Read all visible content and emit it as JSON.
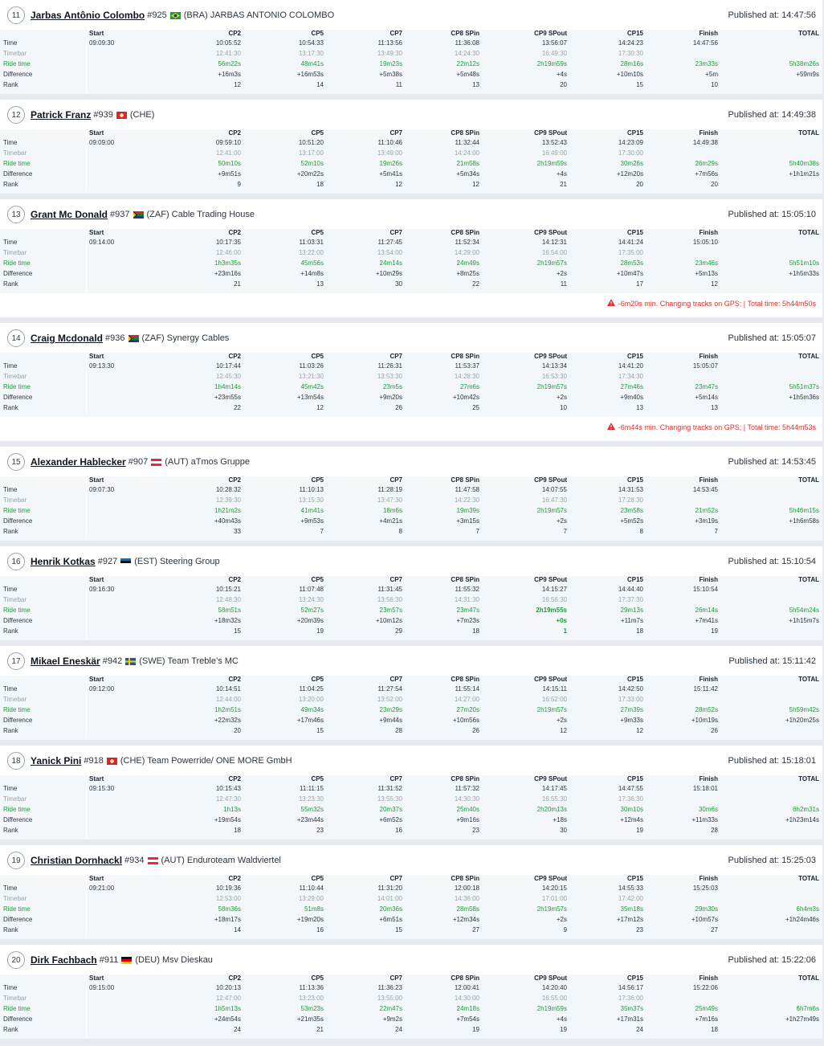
{
  "columns": [
    "Start",
    "CP2",
    "CP5",
    "CP7",
    "CP8 SPin",
    "CP9 SPout",
    "CP15",
    "Finish",
    "TOTAL"
  ],
  "row_labels": [
    "Time",
    "Timebar",
    "Ride time",
    "Difference",
    "Rank"
  ],
  "published_label": "Published at:",
  "riders": [
    {
      "rank": "11",
      "name": "Jarbas Antônio Colombo",
      "bib": "#925",
      "flag": "BRA",
      "country_team": "(BRA) JARBAS ANTONIO COLOMBO",
      "published": "14:47:56",
      "start": "09:09:30",
      "time": [
        "10:05:52",
        "10:54:33",
        "11:13:56",
        "11:36:08",
        "13:56:07",
        "14:24:23",
        "14:47:56",
        ""
      ],
      "timebar": [
        "12:41:30",
        "13:17:30",
        "13:49:30",
        "14:24:30",
        "16:49:30",
        "17:30:30",
        "",
        ""
      ],
      "ride": [
        "56m22s",
        "48m41s",
        "19m23s",
        "22m12s",
        "2h19m59s",
        "28m16s",
        "23m33s",
        "5h38m26s"
      ],
      "diff": [
        "+16m3s",
        "+16m53s",
        "+5m38s",
        "+5m48s",
        "+4s",
        "+10m10s",
        "+5m",
        "+59m9s"
      ],
      "rank_row": [
        "12",
        "14",
        "11",
        "13",
        "20",
        "15",
        "10",
        ""
      ],
      "warning": ""
    },
    {
      "rank": "12",
      "name": "Patrick Franz",
      "bib": "#939",
      "flag": "CHE",
      "country_team": "(CHE)",
      "published": "14:49:38",
      "start": "09:09:00",
      "time": [
        "09:59:10",
        "10:51:20",
        "11:10:46",
        "11:32:44",
        "13:52:43",
        "14:23:09",
        "14:49:38",
        ""
      ],
      "timebar": [
        "12:41:00",
        "13:17:00",
        "13:49:00",
        "14:24:00",
        "16:49:00",
        "17:30:00",
        "",
        ""
      ],
      "ride": [
        "50m10s",
        "52m10s",
        "19m26s",
        "21m58s",
        "2h19m59s",
        "30m26s",
        "26m29s",
        "5h40m38s"
      ],
      "diff": [
        "+9m51s",
        "+20m22s",
        "+5m41s",
        "+5m34s",
        "+4s",
        "+12m20s",
        "+7m56s",
        "+1h1m21s"
      ],
      "rank_row": [
        "9",
        "18",
        "12",
        "12",
        "21",
        "20",
        "20",
        ""
      ],
      "warning": ""
    },
    {
      "rank": "13",
      "name": "Grant Mc Donald",
      "bib": "#937",
      "flag": "ZAF",
      "country_team": "(ZAF) Cable Trading House",
      "published": "15:05:10",
      "start": "09:14:00",
      "time": [
        "10:17:35",
        "11:03:31",
        "11:27:45",
        "11:52:34",
        "14:12:31",
        "14:41:24",
        "15:05:10",
        ""
      ],
      "timebar": [
        "12:46:00",
        "13:22:00",
        "13:54:00",
        "14:29:00",
        "16:54:00",
        "17:35:00",
        "",
        ""
      ],
      "ride": [
        "1h3m35s",
        "45m56s",
        "24m14s",
        "24m49s",
        "2h19m57s",
        "28m53s",
        "23m46s",
        "5h51m10s"
      ],
      "diff": [
        "+23m16s",
        "+14m8s",
        "+10m29s",
        "+8m25s",
        "+2s",
        "+10m47s",
        "+5m13s",
        "+1h5m33s"
      ],
      "rank_row": [
        "21",
        "13",
        "30",
        "22",
        "11",
        "17",
        "12",
        ""
      ],
      "warning": "-6m20s min. Changing tracks on GPS; | Total time: 5h44m50s"
    },
    {
      "rank": "14",
      "name": "Craig Mcdonald",
      "bib": "#936",
      "flag": "ZAF",
      "country_team": "(ZAF) Synergy Cables",
      "published": "15:05:07",
      "start": "09:13:30",
      "time": [
        "10:17:44",
        "11:03:26",
        "11:26:31",
        "11:53:37",
        "14:13:34",
        "14:41:20",
        "15:05:07",
        ""
      ],
      "timebar": [
        "12:45:30",
        "13:21:30",
        "13:53:30",
        "14:28:30",
        "16:53:30",
        "17:34:30",
        "",
        ""
      ],
      "ride": [
        "1h4m14s",
        "45m42s",
        "23m5s",
        "27m6s",
        "2h19m57s",
        "27m46s",
        "23m47s",
        "5h51m37s"
      ],
      "diff": [
        "+23m55s",
        "+13m54s",
        "+9m20s",
        "+10m42s",
        "+2s",
        "+9m40s",
        "+5m14s",
        "+1h5m36s"
      ],
      "rank_row": [
        "22",
        "12",
        "26",
        "25",
        "10",
        "13",
        "13",
        ""
      ],
      "warning": "-6m44s min. Changing tracks on GPS; | Total time: 5h44m53s"
    },
    {
      "rank": "15",
      "name": "Alexander Hablecker",
      "bib": "#907",
      "flag": "AUT",
      "country_team": "(AUT) aTmos Gruppe",
      "published": "14:53:45",
      "start": "09:07:30",
      "time": [
        "10:28:32",
        "11:10:13",
        "11:28:19",
        "11:47:58",
        "14:07:55",
        "14:31:53",
        "14:53:45",
        ""
      ],
      "timebar": [
        "12:39:30",
        "13:15:30",
        "13:47:30",
        "14:22:30",
        "16:47:30",
        "17:28:30",
        "",
        ""
      ],
      "ride": [
        "1h21m2s",
        "41m41s",
        "18m6s",
        "19m39s",
        "2h19m57s",
        "23m58s",
        "21m52s",
        "5h46m15s"
      ],
      "diff": [
        "+40m43s",
        "+9m53s",
        "+4m21s",
        "+3m15s",
        "+2s",
        "+5m52s",
        "+3m19s",
        "+1h6m58s"
      ],
      "rank_row": [
        "33",
        "7",
        "8",
        "7",
        "7",
        "8",
        "7",
        ""
      ],
      "warning": ""
    },
    {
      "rank": "16",
      "name": "Henrik Kotkas",
      "bib": "#927",
      "flag": "EST",
      "country_team": "(EST) Steering Group",
      "published": "15:10:54",
      "start": "09:16:30",
      "time": [
        "10:15:21",
        "11:07:48",
        "11:31:45",
        "11:55:32",
        "14:15:27",
        "14:44:40",
        "15:10:54",
        ""
      ],
      "timebar": [
        "12:48:30",
        "13:24:30",
        "13:56:30",
        "14:31:30",
        "16:56:30",
        "17:37:30",
        "",
        ""
      ],
      "ride": [
        "58m51s",
        "52m27s",
        "23m57s",
        "23m47s",
        "2h19m55s",
        "29m13s",
        "26m14s",
        "5h54m24s"
      ],
      "diff": [
        "+18m32s",
        "+20m39s",
        "+10m12s",
        "+7m23s",
        "+0s",
        "+11m7s",
        "+7m41s",
        "+1h15m7s"
      ],
      "rank_row": [
        "15",
        "19",
        "29",
        "18",
        "1",
        "18",
        "19",
        ""
      ],
      "best_col": 4,
      "warning": ""
    },
    {
      "rank": "17",
      "name": "Mikael Eneskär",
      "bib": "#942",
      "flag": "SWE",
      "country_team": "(SWE) Team Treble’s MC",
      "published": "15:11:42",
      "start": "09:12:00",
      "time": [
        "10:14:51",
        "11:04:25",
        "11:27:54",
        "11:55:14",
        "14:15:11",
        "14:42:50",
        "15:11:42",
        ""
      ],
      "timebar": [
        "12:44:00",
        "13:20:00",
        "13:52:00",
        "14:27:00",
        "16:52:00",
        "17:33:00",
        "",
        ""
      ],
      "ride": [
        "1h2m51s",
        "49m34s",
        "23m29s",
        "27m20s",
        "2h19m57s",
        "27m39s",
        "28m52s",
        "5h59m42s"
      ],
      "diff": [
        "+22m32s",
        "+17m46s",
        "+9m44s",
        "+10m56s",
        "+2s",
        "+9m33s",
        "+10m19s",
        "+1h20m25s"
      ],
      "rank_row": [
        "20",
        "15",
        "28",
        "26",
        "12",
        "12",
        "26",
        ""
      ],
      "warning": ""
    },
    {
      "rank": "18",
      "name": "Yanick Pini",
      "bib": "#918",
      "flag": "CHE",
      "country_team": "(CHE) Team Powerride/ ONE MORE GmbH",
      "published": "15:18:01",
      "start": "09:15:30",
      "time": [
        "10:15:43",
        "11:11:15",
        "11:31:52",
        "11:57:32",
        "14:17:45",
        "14:47:55",
        "15:18:01",
        ""
      ],
      "timebar": [
        "12:47:30",
        "13:23:30",
        "13:55:30",
        "14:30:30",
        "16:55:30",
        "17:36:30",
        "",
        ""
      ],
      "ride": [
        "1h13s",
        "55m32s",
        "20m37s",
        "25m40s",
        "2h20m13s",
        "30m10s",
        "30m6s",
        "6h2m31s"
      ],
      "diff": [
        "+19m54s",
        "+23m44s",
        "+6m52s",
        "+9m16s",
        "+18s",
        "+12m4s",
        "+11m33s",
        "+1h23m14s"
      ],
      "rank_row": [
        "18",
        "23",
        "16",
        "23",
        "30",
        "19",
        "28",
        ""
      ],
      "warning": ""
    },
    {
      "rank": "19",
      "name": "Christian Dornhackl",
      "bib": "#934",
      "flag": "AUT",
      "country_team": "(AUT) Enduroteam Waldviertel",
      "published": "15:25:03",
      "start": "09:21:00",
      "time": [
        "10:19:36",
        "11:10:44",
        "11:31:20",
        "12:00:18",
        "14:20:15",
        "14:55:33",
        "15:25:03",
        ""
      ],
      "timebar": [
        "12:53:00",
        "13:29:00",
        "14:01:00",
        "14:36:00",
        "17:01:00",
        "17:42:00",
        "",
        ""
      ],
      "ride": [
        "58m36s",
        "51m8s",
        "20m36s",
        "28m58s",
        "2h19m57s",
        "35m18s",
        "29m30s",
        "6h4m3s"
      ],
      "diff": [
        "+18m17s",
        "+19m20s",
        "+6m51s",
        "+12m34s",
        "+2s",
        "+17m12s",
        "+10m57s",
        "+1h24m46s"
      ],
      "rank_row": [
        "14",
        "16",
        "15",
        "27",
        "9",
        "23",
        "27",
        ""
      ],
      "warning": ""
    },
    {
      "rank": "20",
      "name": "Dirk Fachbach",
      "bib": "#911",
      "flag": "DEU",
      "country_team": "(DEU) Msv Dieskau",
      "published": "15:22:06",
      "start": "09:15:00",
      "time": [
        "10:20:13",
        "11:13:36",
        "11:36:23",
        "12:00:41",
        "14:20:40",
        "14:56:17",
        "15:22:06",
        ""
      ],
      "timebar": [
        "12:47:00",
        "13:23:00",
        "13:55:00",
        "14:30:00",
        "16:55:00",
        "17:36:00",
        "",
        ""
      ],
      "ride": [
        "1h5m13s",
        "53m23s",
        "22m47s",
        "24m18s",
        "2h19m59s",
        "35m37s",
        "25m49s",
        "6h7m6s"
      ],
      "diff": [
        "+24m54s",
        "+21m35s",
        "+9m2s",
        "+7m54s",
        "+4s",
        "+17m31s",
        "+7m16s",
        "+1h27m49s"
      ],
      "rank_row": [
        "24",
        "21",
        "24",
        "19",
        "19",
        "24",
        "18",
        ""
      ],
      "warning": ""
    }
  ],
  "colors": {
    "ride": "#1f9a3b",
    "warning": "#d93131",
    "timebar": "#9aa3ad"
  },
  "icons": {
    "warning": "warning-triangle-icon"
  }
}
